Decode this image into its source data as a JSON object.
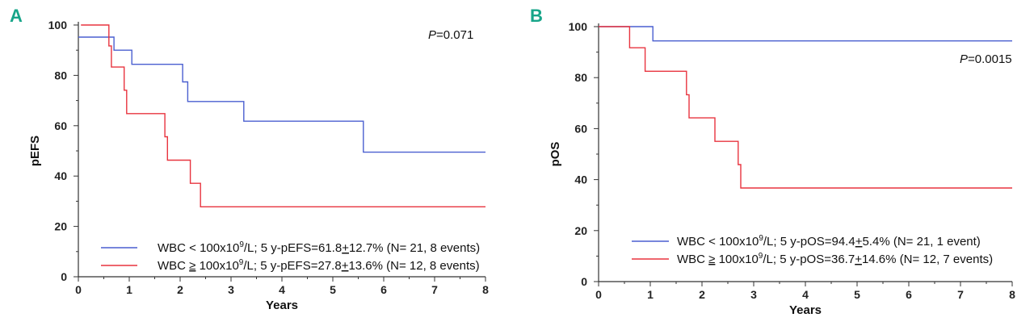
{
  "chart_data": [
    {
      "type": "line",
      "panel_label": "A",
      "xlabel": "Years",
      "ylabel": "pEFS",
      "xlim": [
        0,
        8
      ],
      "ylim": [
        0,
        100
      ],
      "x_ticks": [
        "0",
        "1",
        "2",
        "3",
        "4",
        "5",
        "6",
        "7",
        "8"
      ],
      "y_ticks": [
        "0",
        "20",
        "40",
        "60",
        "80",
        "100"
      ],
      "annotation": {
        "italic": "P",
        "text": "=0.071"
      },
      "legend_position": "bottom-right",
      "series": [
        {
          "name": "WBC < 100x10⁹/L",
          "legend": {
            "prefix": "WBC < 100x10",
            "sup": "9",
            "mid": "/L; 5 y-pEFS=61.8",
            "pm": "+",
            "suffix": "12.7%  (N= 21, 8 events)"
          },
          "color": "#4a5fd0",
          "step_x": [
            0,
            0.7,
            0.7,
            1.05,
            1.05,
            2.05,
            2.05,
            2.15,
            2.15,
            3.25,
            3.25,
            5.6,
            5.6,
            8
          ],
          "step_y": [
            95.2,
            95.2,
            90,
            90,
            84.4,
            84.4,
            77.4,
            77.4,
            69.6,
            69.6,
            61.8,
            61.8,
            49.5,
            49.5
          ]
        },
        {
          "name": "WBC ≥ 100x10⁹/L",
          "legend": {
            "prefix": "WBC ",
            "ge": "≥",
            "prefix2": " 100x10",
            "sup": "9",
            "mid": "/L; 5 y-pEFS=27.8",
            "pm": "+",
            "suffix": "13.6%  (N= 12, 8 events)"
          },
          "color": "#e8343f",
          "step_x": [
            0.05,
            0.6,
            0.6,
            0.65,
            0.65,
            0.9,
            0.9,
            0.95,
            0.95,
            1.7,
            1.7,
            1.75,
            1.75,
            2.2,
            2.2,
            2.4,
            2.4,
            8
          ],
          "step_y": [
            100,
            100,
            91.7,
            91.7,
            83.3,
            83.3,
            74.1,
            74.1,
            64.8,
            64.8,
            55.6,
            55.6,
            46.3,
            46.3,
            37.1,
            37.1,
            27.8,
            27.8
          ]
        }
      ]
    },
    {
      "type": "line",
      "panel_label": "B",
      "xlabel": "Years",
      "ylabel": "pOS",
      "xlim": [
        0,
        8
      ],
      "ylim": [
        0,
        100
      ],
      "x_ticks": [
        "0",
        "1",
        "2",
        "3",
        "4",
        "5",
        "6",
        "7",
        "8"
      ],
      "y_ticks": [
        "0",
        "20",
        "40",
        "60",
        "80",
        "100"
      ],
      "annotation": {
        "italic": "P",
        "text": "=0.0015"
      },
      "legend_position": "bottom-right",
      "series": [
        {
          "name": "WBC < 100x10⁹/L",
          "legend": {
            "prefix": "WBC < 100x10",
            "sup": "9",
            "mid": "/L; 5 y-pOS=94.4",
            "pm": "+",
            "suffix": "5.4%   (N= 21, 1 event)"
          },
          "color": "#4a5fd0",
          "step_x": [
            0,
            1.05,
            1.05,
            8
          ],
          "step_y": [
            100,
            100,
            94.4,
            94.4
          ]
        },
        {
          "name": "WBC ≥ 100x10⁹/L",
          "legend": {
            "prefix": "WBC ",
            "ge": "≥",
            "prefix2": " 100x10",
            "sup": "9",
            "mid": "/L; 5 y-pOS=36.7",
            "pm": "+",
            "suffix": "14.6%  (N= 12, 7 events)"
          },
          "color": "#e8343f",
          "step_x": [
            0,
            0.6,
            0.6,
            0.9,
            0.9,
            1.7,
            1.7,
            1.75,
            1.75,
            2.25,
            2.25,
            2.7,
            2.7,
            2.75,
            2.75,
            8
          ],
          "step_y": [
            100,
            100,
            91.7,
            91.7,
            82.5,
            82.5,
            73.3,
            73.3,
            64.2,
            64.2,
            55,
            55,
            45.9,
            45.9,
            36.7,
            36.7
          ]
        }
      ]
    }
  ]
}
